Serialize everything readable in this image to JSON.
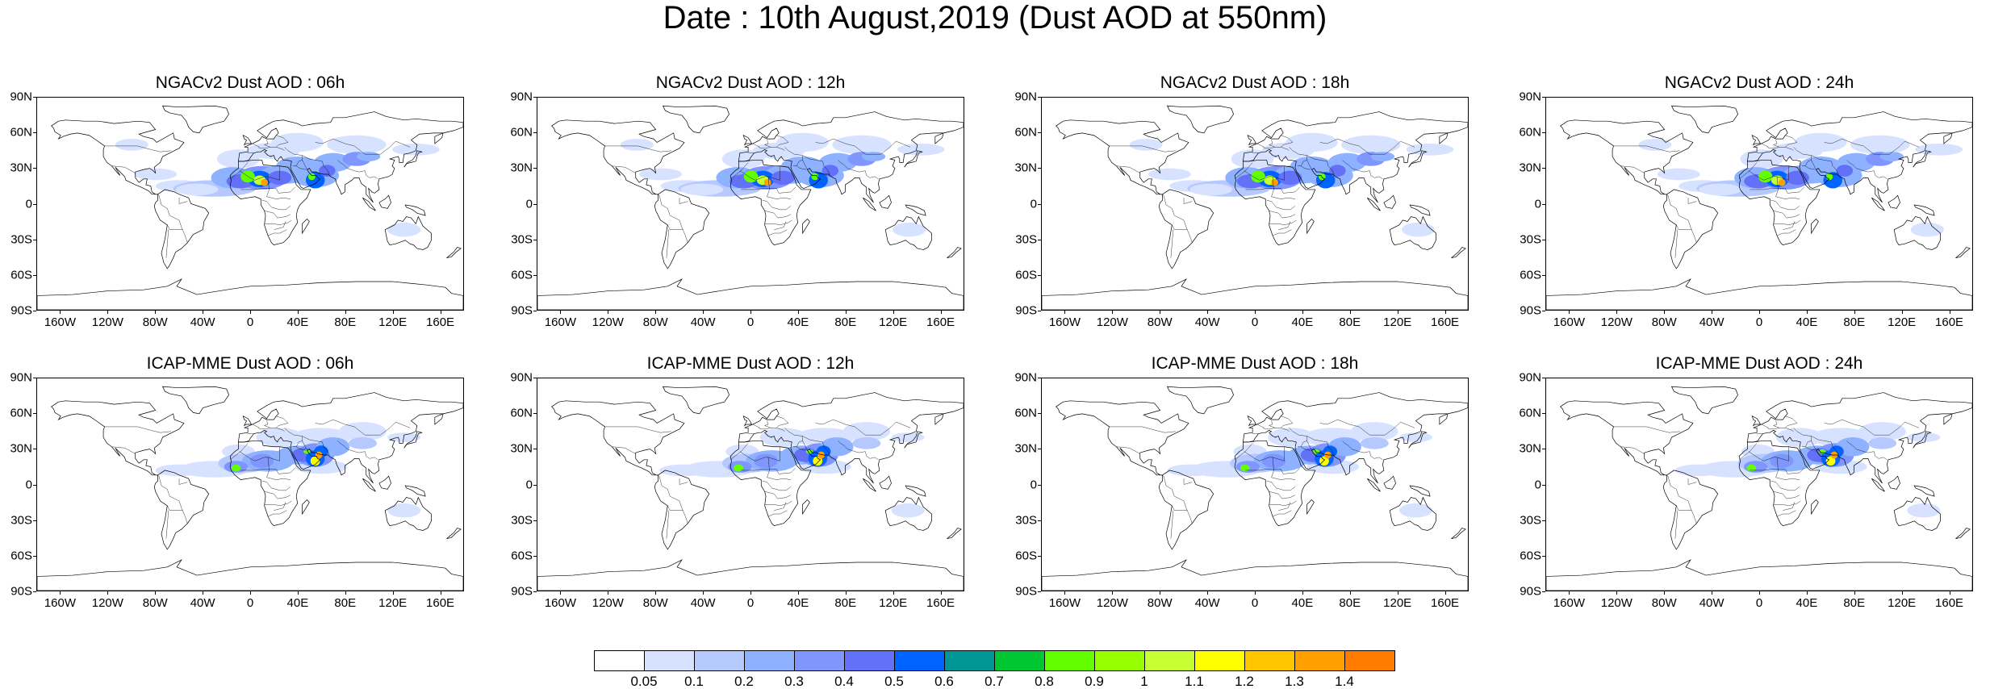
{
  "title": "Date : 10th August,2019 (Dust AOD at 550nm)",
  "lat_labels": [
    "90N",
    "60N",
    "30N",
    "0",
    "30S",
    "60S",
    "90S"
  ],
  "lon_labels": [
    "160W",
    "120W",
    "80W",
    "40W",
    "0",
    "40E",
    "80E",
    "120E",
    "160E"
  ],
  "lon_values": [
    -160,
    -120,
    -80,
    -40,
    0,
    40,
    80,
    120,
    160
  ],
  "lat_values": [
    90,
    60,
    30,
    0,
    -30,
    -60,
    -90
  ],
  "panels": [
    {
      "title": "NGACv2 Dust AOD : 06h",
      "model": "ngac",
      "variant": 0
    },
    {
      "title": "NGACv2 Dust AOD : 12h",
      "model": "ngac",
      "variant": 1
    },
    {
      "title": "NGACv2 Dust AOD : 18h",
      "model": "ngac",
      "variant": 2
    },
    {
      "title": "NGACv2 Dust AOD : 24h",
      "model": "ngac",
      "variant": 3
    },
    {
      "title": "ICAP-MME Dust AOD : 06h",
      "model": "icap",
      "variant": 0
    },
    {
      "title": "ICAP-MME Dust AOD : 12h",
      "model": "icap",
      "variant": 1
    },
    {
      "title": "ICAP-MME Dust AOD : 18h",
      "model": "icap",
      "variant": 2
    },
    {
      "title": "ICAP-MME Dust AOD : 24h",
      "model": "icap",
      "variant": 3
    }
  ],
  "colorbar": {
    "labels": [
      "0.05",
      "0.1",
      "0.2",
      "0.3",
      "0.4",
      "0.5",
      "0.6",
      "0.7",
      "0.8",
      "0.9",
      "1",
      "1.1",
      "1.2",
      "1.3",
      "1.4"
    ],
    "colors": [
      "#ffffff",
      "#d6e2ff",
      "#b5c9ff",
      "#8eb2ff",
      "#7f96ff",
      "#6370f8",
      "#0063ff",
      "#009696",
      "#00c633",
      "#63ff00",
      "#96ff00",
      "#c6ff33",
      "#ffff00",
      "#ffc600",
      "#ffa000",
      "#ff7c00",
      "#ff1900"
    ]
  }
}
